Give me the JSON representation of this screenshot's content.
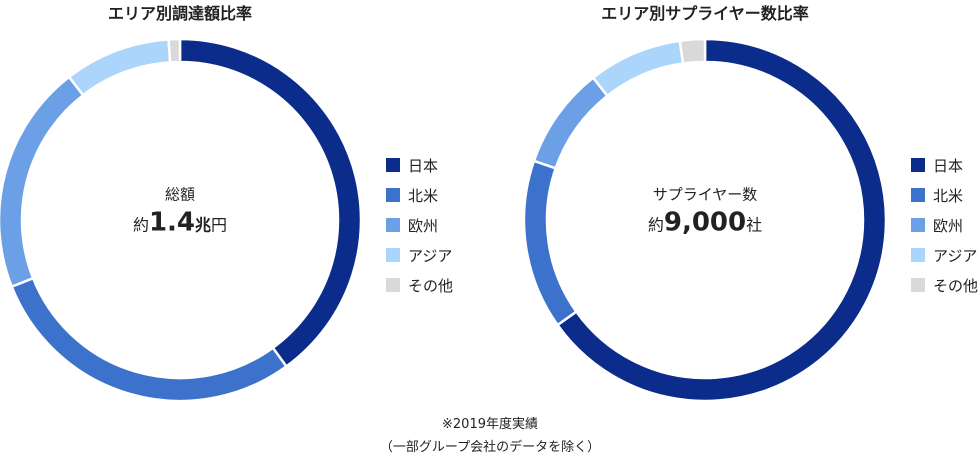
{
  "colors": {
    "japan": "#0b2c8a",
    "north_america": "#3d72cc",
    "europe": "#6b9fe6",
    "asia": "#acd5fb",
    "others": "#d9d9d9"
  },
  "legend_labels": [
    "日本",
    "北米",
    "欧州",
    "アジア",
    "その他"
  ],
  "chart_data": [
    {
      "type": "pie",
      "title": "エリア別調達額比率",
      "categories": [
        "日本",
        "北米",
        "欧州",
        "アジア",
        "その他"
      ],
      "values": [
        40,
        29,
        20.5,
        9.5,
        1
      ],
      "center": {
        "label": "総額",
        "prefix": "約",
        "value": "1.4",
        "unit_bold": "兆",
        "unit": "円"
      }
    },
    {
      "type": "pie",
      "title": "エリア別サプライヤー数比率",
      "categories": [
        "日本",
        "北米",
        "欧州",
        "アジア",
        "その他"
      ],
      "values": [
        64.5,
        15,
        9,
        8.3,
        2.2
      ],
      "center": {
        "label": "サプライヤー数",
        "prefix": "約",
        "value": "9,000",
        "unit": "社"
      }
    }
  ],
  "footnotes": [
    "※2019年度実績",
    "（一部グループ会社のデータを除く）"
  ]
}
